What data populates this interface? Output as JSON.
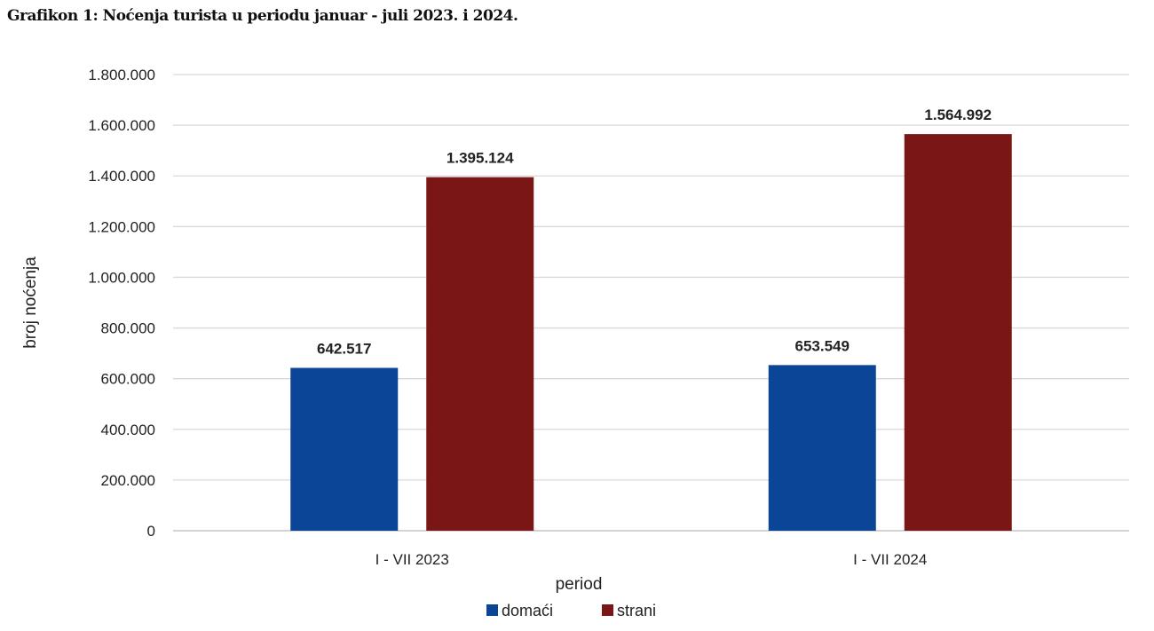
{
  "chart_data": {
    "type": "bar",
    "title": "Grafikon 1: Noćenja turista u periodu januar - juli 2023. i 2024.",
    "xlabel": "period",
    "ylabel": "broj noćenja",
    "categories": [
      "I - VII 2023",
      "I - VII 2024"
    ],
    "series": [
      {
        "name": "domaći",
        "color": "#0b4597",
        "values": [
          642517,
          653549
        ],
        "labels": [
          "642.517",
          "653.549"
        ]
      },
      {
        "name": "strani",
        "color": "#7a1716",
        "values": [
          1395124,
          1564992
        ],
        "labels": [
          "1.395.124",
          "1.564.992"
        ]
      }
    ],
    "ylim": [
      0,
      1800000
    ],
    "yticks": [
      0,
      200000,
      400000,
      600000,
      800000,
      1000000,
      1200000,
      1400000,
      1600000,
      1800000
    ],
    "ytick_labels": [
      "0",
      "200.000",
      "400.000",
      "600.000",
      "800.000",
      "1.000.000",
      "1.200.000",
      "1.400.000",
      "1.600.000",
      "1.800.000"
    ],
    "grid": true,
    "legend": "bottom"
  }
}
